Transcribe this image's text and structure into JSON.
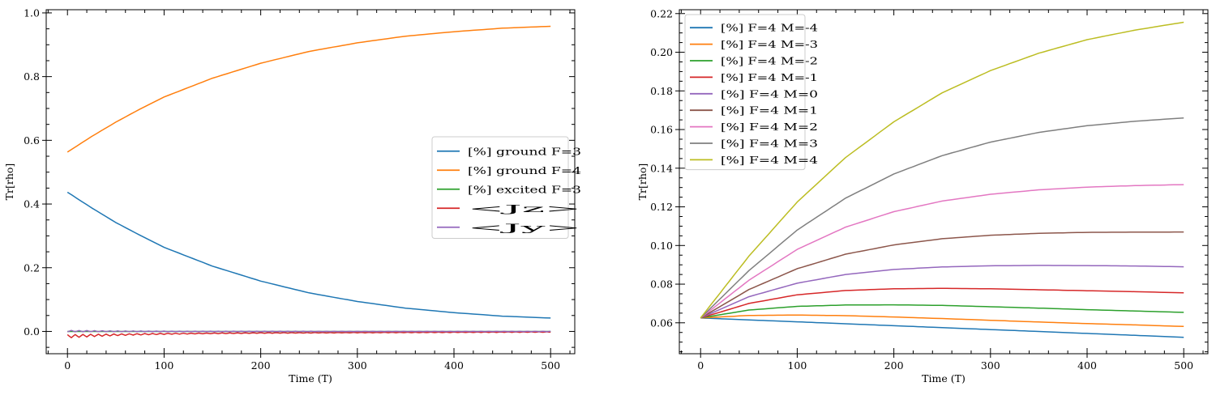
{
  "chart_data": [
    {
      "type": "line",
      "xlabel": "Time (T)",
      "ylabel": "Tr[rho]",
      "xlim": [
        -22,
        525
      ],
      "ylim": [
        -0.07,
        1.01
      ],
      "xticks": [
        0,
        100,
        200,
        300,
        400,
        500
      ],
      "yticks": [
        0.0,
        0.2,
        0.4,
        0.6,
        0.8,
        1.0
      ],
      "ytick_labels": [
        "0.0",
        "0.2",
        "0.4",
        "0.6",
        "0.8",
        "1.0"
      ],
      "grid": false,
      "legend": "center-right",
      "series": [
        {
          "name": "[%] ground  F=3",
          "color": "#1f77b4",
          "x": [
            0,
            25,
            50,
            75,
            100,
            150,
            200,
            250,
            300,
            350,
            400,
            450,
            500
          ],
          "values": [
            0.437,
            0.388,
            0.342,
            0.302,
            0.264,
            0.205,
            0.158,
            0.121,
            0.094,
            0.073,
            0.059,
            0.048,
            0.042
          ]
        },
        {
          "name": "[%] ground  F=4",
          "color": "#ff7f0e",
          "x": [
            0,
            25,
            50,
            75,
            100,
            150,
            200,
            250,
            300,
            350,
            400,
            450,
            500
          ],
          "values": [
            0.563,
            0.612,
            0.657,
            0.698,
            0.736,
            0.795,
            0.842,
            0.879,
            0.906,
            0.927,
            0.941,
            0.952,
            0.958
          ]
        },
        {
          "name": "[%] excited F=3",
          "color": "#2ca02c",
          "x": [
            0,
            500
          ],
          "values": [
            0.0,
            0.0
          ]
        },
        {
          "name": "<Jz>",
          "color": "#d62728",
          "oscillating": true,
          "x": [
            0,
            100,
            200,
            300,
            400,
            500
          ],
          "values": [
            -0.01,
            -0.006,
            -0.004,
            -0.003,
            -0.002,
            -0.001
          ]
        },
        {
          "name": "<Jy>",
          "color": "#9467bd",
          "oscillating": true,
          "x": [
            0,
            100,
            200,
            300,
            400,
            500
          ],
          "values": [
            0.001,
            0.0,
            0.0,
            0.0,
            0.0,
            0.0
          ]
        }
      ]
    },
    {
      "type": "line",
      "xlabel": "Time (T)",
      "ylabel": "Tr[rho]",
      "xlim": [
        -22,
        525
      ],
      "ylim": [
        0.044,
        0.222
      ],
      "xticks": [
        0,
        100,
        200,
        300,
        400,
        500
      ],
      "yticks": [
        0.06,
        0.08,
        0.1,
        0.12,
        0.14,
        0.16,
        0.18,
        0.2,
        0.22
      ],
      "ytick_labels": [
        "0.06",
        "0.08",
        "0.10",
        "0.12",
        "0.14",
        "0.16",
        "0.18",
        "0.20",
        "0.22"
      ],
      "grid": false,
      "legend": "upper-left",
      "series": [
        {
          "name": "[%] F=4  M=-4",
          "color": "#1f77b4",
          "x": [
            0,
            100,
            200,
            300,
            400,
            500
          ],
          "values": [
            0.0625,
            0.0605,
            0.0585,
            0.0565,
            0.0545,
            0.0525
          ]
        },
        {
          "name": "[%] F=4  M=-3",
          "color": "#ff7f0e",
          "x": [
            0,
            50,
            100,
            150,
            200,
            250,
            300,
            350,
            400,
            450,
            500
          ],
          "values": [
            0.0625,
            0.0638,
            0.064,
            0.0637,
            0.063,
            0.0622,
            0.0613,
            0.0604,
            0.0596,
            0.0589,
            0.0581
          ]
        },
        {
          "name": "[%] F=4  M=-2",
          "color": "#2ca02c",
          "x": [
            0,
            50,
            100,
            150,
            200,
            250,
            300,
            350,
            400,
            450,
            500
          ],
          "values": [
            0.0625,
            0.0666,
            0.0685,
            0.0692,
            0.0693,
            0.069,
            0.0683,
            0.0676,
            0.0668,
            0.0661,
            0.0654
          ]
        },
        {
          "name": "[%] F=4  M=-1",
          "color": "#d62728",
          "x": [
            0,
            50,
            100,
            150,
            200,
            250,
            300,
            350,
            400,
            450,
            500
          ],
          "values": [
            0.0625,
            0.07,
            0.0745,
            0.0767,
            0.0776,
            0.0778,
            0.0776,
            0.0771,
            0.0766,
            0.0761,
            0.0755
          ]
        },
        {
          "name": "[%] F=4  M=0",
          "color": "#9467bd",
          "x": [
            0,
            50,
            100,
            150,
            200,
            250,
            300,
            350,
            400,
            450,
            500
          ],
          "values": [
            0.0625,
            0.0735,
            0.0805,
            0.085,
            0.0876,
            0.0889,
            0.0895,
            0.0897,
            0.0896,
            0.0894,
            0.089
          ]
        },
        {
          "name": "[%] F=4  M=1",
          "color": "#8c564b",
          "x": [
            0,
            50,
            100,
            150,
            200,
            250,
            300,
            350,
            400,
            450,
            500
          ],
          "values": [
            0.0625,
            0.0772,
            0.088,
            0.0955,
            0.1003,
            0.1035,
            0.1053,
            0.1063,
            0.1068,
            0.1069,
            0.107
          ]
        },
        {
          "name": "[%] F=4  M=2",
          "color": "#e377c2",
          "x": [
            0,
            50,
            100,
            150,
            200,
            250,
            300,
            350,
            400,
            450,
            500
          ],
          "values": [
            0.0625,
            0.082,
            0.098,
            0.1095,
            0.1175,
            0.123,
            0.1265,
            0.1288,
            0.1302,
            0.131,
            0.1315
          ]
        },
        {
          "name": "[%] F=4  M=3",
          "color": "#7f7f7f",
          "x": [
            0,
            50,
            100,
            150,
            200,
            250,
            300,
            350,
            400,
            450,
            500
          ],
          "values": [
            0.0625,
            0.087,
            0.108,
            0.1245,
            0.137,
            0.1465,
            0.1535,
            0.1585,
            0.162,
            0.1643,
            0.166
          ]
        },
        {
          "name": "[%] F=4  M=4",
          "color": "#bcbd22",
          "x": [
            0,
            50,
            100,
            150,
            200,
            250,
            300,
            350,
            400,
            450,
            500
          ],
          "values": [
            0.0625,
            0.0945,
            0.1225,
            0.1455,
            0.164,
            0.179,
            0.1905,
            0.1995,
            0.2065,
            0.2115,
            0.2155
          ]
        }
      ]
    }
  ]
}
